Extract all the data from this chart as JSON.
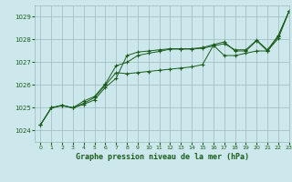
{
  "title": "Graphe pression niveau de la mer (hPa)",
  "background_color": "#cce8ec",
  "grid_color": "#99bbbb",
  "line_color": "#1a5c1a",
  "xlim": [
    -0.5,
    23
  ],
  "ylim": [
    1023.5,
    1029.5
  ],
  "yticks": [
    1024,
    1025,
    1026,
    1027,
    1028,
    1029
  ],
  "xticks": [
    0,
    1,
    2,
    3,
    4,
    5,
    6,
    7,
    8,
    9,
    10,
    11,
    12,
    13,
    14,
    15,
    16,
    17,
    18,
    19,
    20,
    21,
    22,
    23
  ],
  "series": [
    [
      1024.25,
      1025.0,
      1025.1,
      1025.0,
      1025.15,
      1025.35,
      1025.9,
      1026.3,
      1027.3,
      1027.45,
      1027.5,
      1027.55,
      1027.6,
      1027.6,
      1027.6,
      1027.65,
      1027.78,
      1027.9,
      1027.5,
      1027.5,
      1027.95,
      1027.5,
      1028.05,
      1029.25
    ],
    [
      1024.25,
      1025.0,
      1025.1,
      1025.0,
      1025.2,
      1025.45,
      1026.0,
      1026.55,
      1026.5,
      1026.55,
      1026.6,
      1026.65,
      1026.7,
      1026.75,
      1026.8,
      1026.9,
      1027.75,
      1027.3,
      1027.3,
      1027.4,
      1027.5,
      1027.5,
      1028.15,
      1029.25
    ],
    [
      1024.25,
      1025.0,
      1025.12,
      1025.0,
      1025.3,
      1025.5,
      1026.05,
      1026.85,
      1027.0,
      1027.3,
      1027.4,
      1027.48,
      1027.58,
      1027.58,
      1027.58,
      1027.62,
      1027.72,
      1027.82,
      1027.55,
      1027.55,
      1027.98,
      1027.55,
      1028.18,
      1029.25
    ]
  ]
}
